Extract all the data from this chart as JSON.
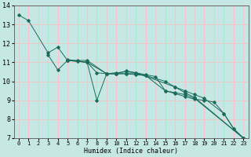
{
  "xlabel": "Humidex (Indice chaleur)",
  "bg_color": "#c5e8e5",
  "grid_color": "#f0c8c8",
  "line_color": "#1a6b5a",
  "xlim": [
    -0.5,
    23.5
  ],
  "ylim": [
    7,
    14
  ],
  "xticks": [
    0,
    1,
    2,
    3,
    4,
    5,
    6,
    7,
    8,
    9,
    10,
    11,
    12,
    13,
    14,
    15,
    16,
    17,
    18,
    19,
    20,
    21,
    22,
    23
  ],
  "yticks": [
    7,
    8,
    9,
    10,
    11,
    12,
    13,
    14
  ],
  "series": [
    {
      "x": [
        0,
        1,
        3,
        4,
        5,
        6,
        7,
        9,
        10,
        11,
        12,
        13,
        15,
        16,
        17,
        18,
        19,
        21,
        22,
        23
      ],
      "y": [
        13.5,
        13.2,
        11.5,
        11.8,
        11.1,
        11.1,
        11.1,
        10.4,
        10.4,
        10.4,
        10.35,
        10.3,
        10.0,
        9.7,
        9.5,
        9.3,
        9.1,
        8.3,
        7.5,
        7.0
      ]
    },
    {
      "x": [
        3,
        4,
        5,
        6,
        7,
        8,
        9,
        10,
        11,
        12,
        13,
        14,
        15,
        16,
        17,
        18,
        19,
        20,
        21,
        22,
        23
      ],
      "y": [
        11.4,
        10.6,
        11.1,
        11.05,
        11.0,
        9.0,
        10.4,
        10.4,
        10.55,
        10.45,
        10.35,
        10.25,
        9.5,
        9.35,
        9.2,
        9.05,
        9.0,
        8.9,
        8.3,
        7.5,
        7.0
      ]
    },
    {
      "x": [
        5,
        7,
        8,
        9,
        10,
        11,
        12,
        16,
        17,
        18,
        23
      ],
      "y": [
        11.15,
        11.0,
        10.45,
        10.4,
        10.45,
        10.5,
        10.45,
        9.7,
        9.4,
        9.15,
        7.0
      ]
    },
    {
      "x": [
        5,
        7,
        9,
        10,
        11,
        12,
        13,
        15,
        16,
        17,
        18,
        23
      ],
      "y": [
        11.1,
        11.0,
        10.4,
        10.4,
        10.4,
        10.4,
        10.3,
        9.5,
        9.4,
        9.3,
        9.1,
        7.0
      ]
    }
  ]
}
